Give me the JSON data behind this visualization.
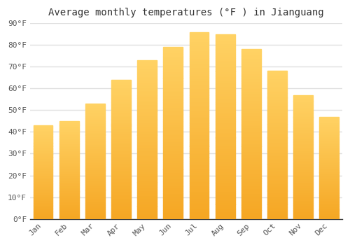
{
  "title": "Average monthly temperatures (°F ) in Jianguang",
  "months": [
    "Jan",
    "Feb",
    "Mar",
    "Apr",
    "May",
    "Jun",
    "Jul",
    "Aug",
    "Sep",
    "Oct",
    "Nov",
    "Dec"
  ],
  "temperatures": [
    43,
    45,
    53,
    64,
    73,
    79,
    86,
    85,
    78,
    68,
    57,
    47
  ],
  "bar_color_bottom": "#F5A623",
  "bar_color_top": "#FFD966",
  "ylim": [
    0,
    90
  ],
  "yticks": [
    0,
    10,
    20,
    30,
    40,
    50,
    60,
    70,
    80,
    90
  ],
  "ytick_labels": [
    "0°F",
    "10°F",
    "20°F",
    "30°F",
    "40°F",
    "50°F",
    "60°F",
    "70°F",
    "80°F",
    "90°F"
  ],
  "background_color": "#FFFFFF",
  "grid_color": "#E0E0E0",
  "title_fontsize": 10,
  "tick_fontsize": 8,
  "bar_width": 0.75,
  "bar_gap_color": "#FFFFFF"
}
